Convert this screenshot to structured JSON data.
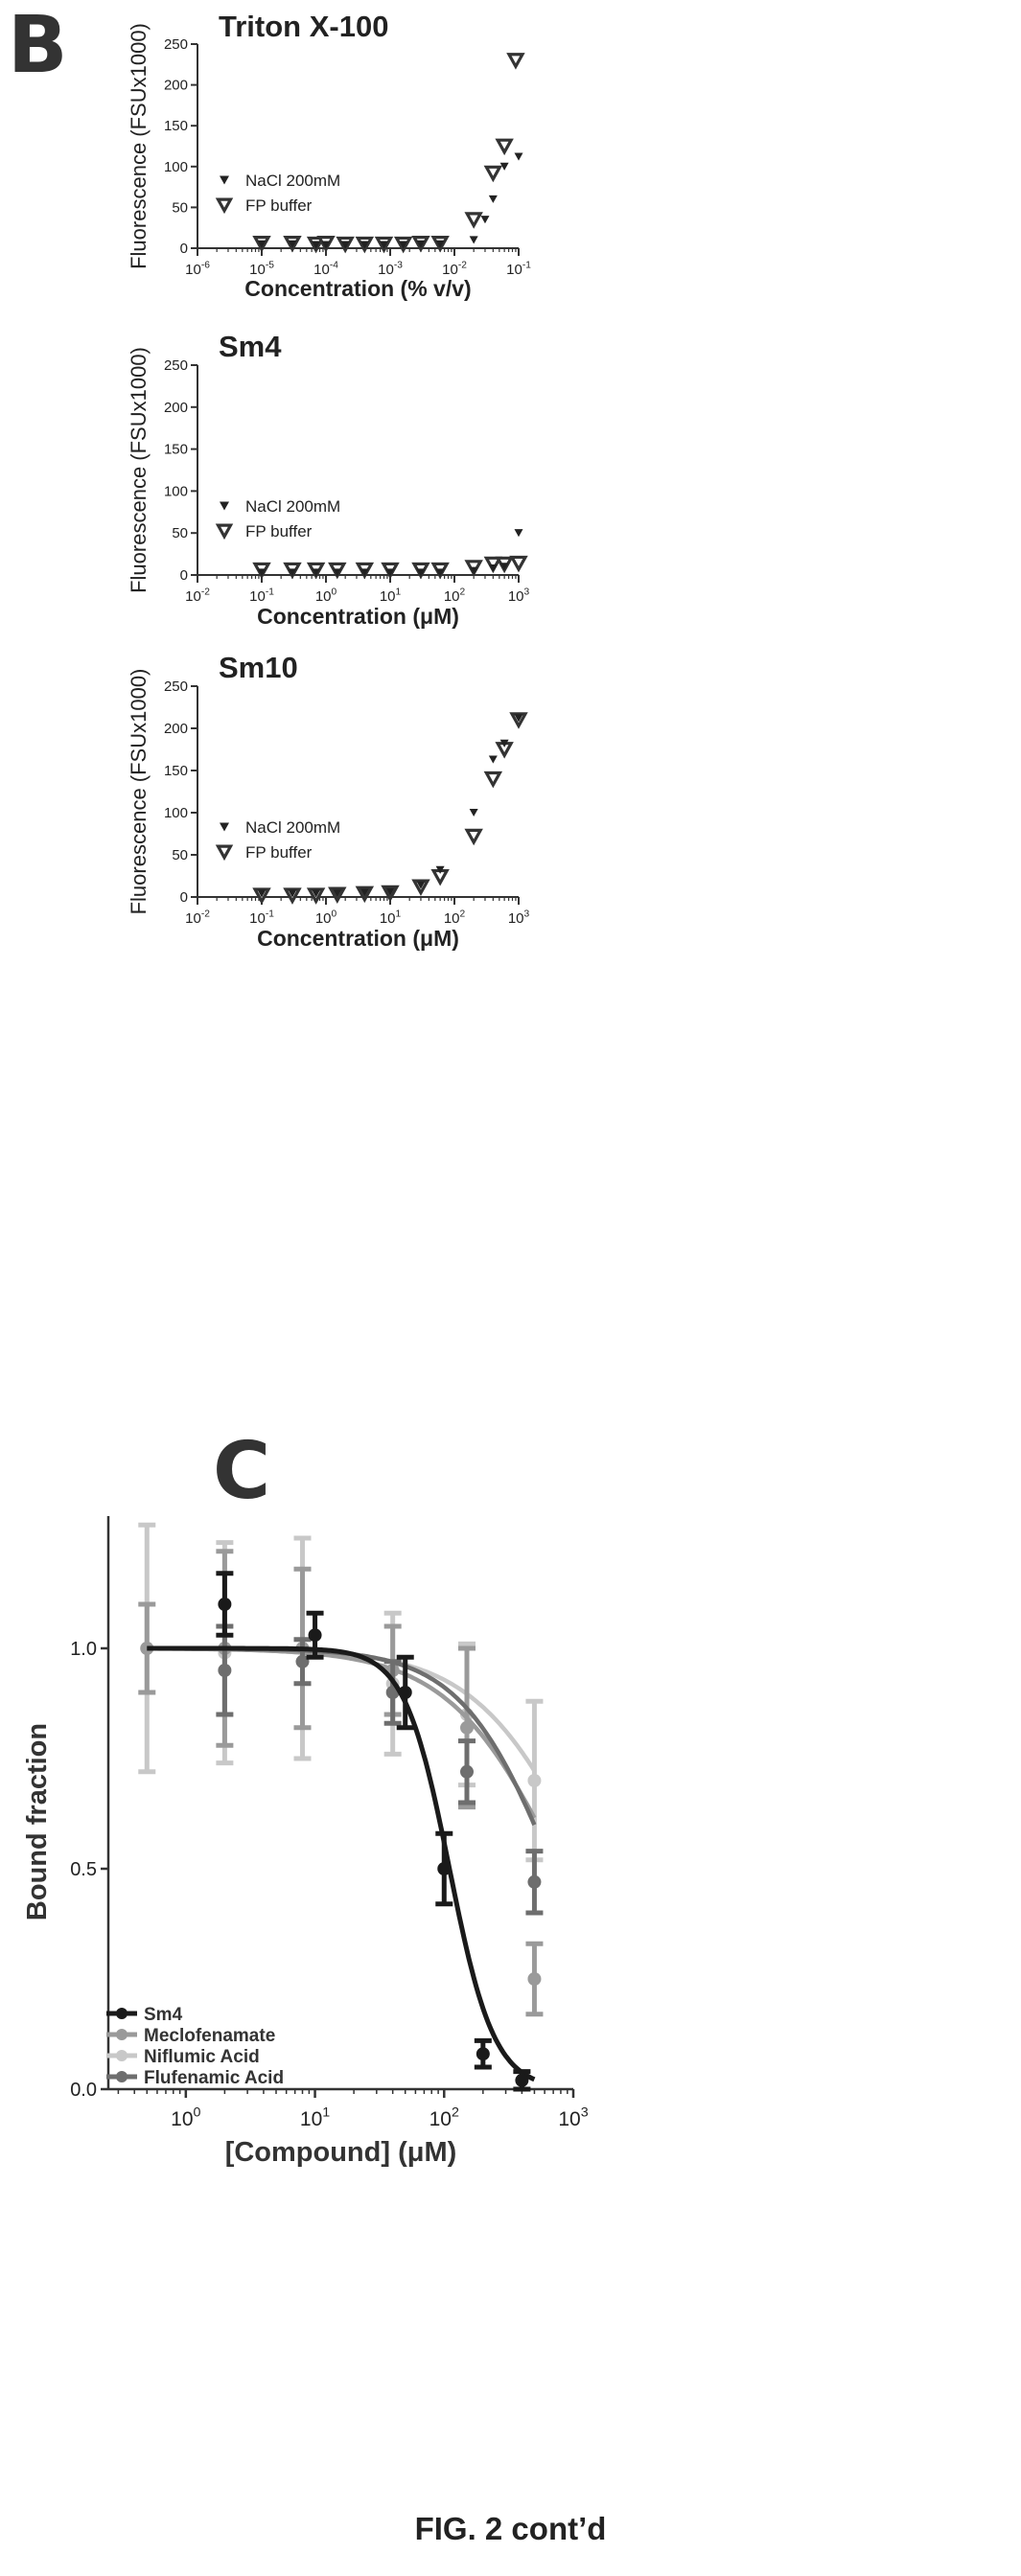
{
  "panel_b_label": "B",
  "panel_c_label": "C",
  "figure_caption": "FIG. 2 cont’d",
  "colors": {
    "axis": "#333333",
    "nacl": "#222222",
    "fp": "#333333",
    "sm4": "#1a1a1a",
    "meclofenamate": "#9a9a9a",
    "niflumic": "#c8c8c8",
    "flufenamic": "#6e6e6e"
  },
  "chart_data": [
    {
      "type": "scatter",
      "title": "Triton X-100",
      "xlabel": "Concentration (% v/v)",
      "ylabel": "Fluorescence (FSUx1000)",
      "xscale": "log",
      "xlim_exp": [
        -6,
        -1
      ],
      "ylim": [
        0,
        250
      ],
      "yticks": [
        0,
        50,
        100,
        150,
        200,
        250
      ],
      "legend_position": "center-left",
      "legend": [
        "NaCl 200mM",
        "FP buffer"
      ],
      "series": [
        {
          "name": "NaCl 200mM",
          "marker": "filled-triangle",
          "x": [
            1e-05,
            3e-05,
            7e-05,
            0.0001,
            0.0002,
            0.0004,
            0.0008,
            0.0016,
            0.003,
            0.006,
            0.02,
            0.03,
            0.04,
            0.06,
            0.1
          ],
          "y": [
            5,
            5,
            4,
            4,
            4,
            4,
            4,
            4,
            5,
            5,
            10,
            35,
            60,
            100,
            112
          ]
        },
        {
          "name": "FP buffer",
          "marker": "open-triangle",
          "x": [
            1e-05,
            3e-05,
            7e-05,
            0.0001,
            0.0002,
            0.0004,
            0.0008,
            0.0016,
            0.003,
            0.006,
            0.02,
            0.04,
            0.06,
            0.09
          ],
          "y": [
            6,
            6,
            5,
            6,
            5,
            5,
            5,
            5,
            6,
            6,
            35,
            92,
            125,
            230
          ]
        }
      ]
    },
    {
      "type": "scatter",
      "title": "Sm4",
      "xlabel": "Concentration (μM)",
      "ylabel": "Fluorescence (FSUx1000)",
      "xscale": "log",
      "xlim_exp": [
        -2,
        3
      ],
      "ylim": [
        0,
        250
      ],
      "yticks": [
        0,
        50,
        100,
        150,
        200,
        250
      ],
      "legend_position": "center-left",
      "legend": [
        "NaCl 200mM",
        "FP buffer"
      ],
      "series": [
        {
          "name": "NaCl 200mM",
          "marker": "filled-triangle",
          "x": [
            0.1,
            0.3,
            0.7,
            1.5,
            4,
            10,
            30,
            60,
            200,
            400,
            600,
            1000
          ],
          "y": [
            3,
            3,
            3,
            3,
            3,
            3,
            3,
            3,
            5,
            8,
            10,
            50
          ]
        },
        {
          "name": "FP buffer",
          "marker": "open-triangle",
          "x": [
            0.1,
            0.3,
            0.7,
            1.5,
            4,
            10,
            30,
            60,
            200,
            400,
            600,
            1000
          ],
          "y": [
            6,
            6,
            6,
            6,
            6,
            6,
            6,
            6,
            9,
            13,
            13,
            14
          ]
        }
      ]
    },
    {
      "type": "scatter",
      "title": "Sm10",
      "xlabel": "Concentration (μM)",
      "ylabel": "Fluorescence (FSUx1000)",
      "xscale": "log",
      "xlim_exp": [
        -2,
        3
      ],
      "ylim": [
        0,
        250
      ],
      "yticks": [
        0,
        50,
        100,
        150,
        200,
        250
      ],
      "legend_position": "center-left",
      "legend": [
        "NaCl 200mM",
        "FP buffer"
      ],
      "series": [
        {
          "name": "NaCl 200mM",
          "marker": "filled-triangle",
          "x": [
            0.1,
            0.3,
            0.7,
            1.5,
            4,
            10,
            30,
            60,
            200,
            400,
            600,
            1000
          ],
          "y": [
            4,
            4,
            4,
            4,
            5,
            6,
            14,
            32,
            100,
            163,
            182,
            212
          ]
        },
        {
          "name": "FP buffer",
          "marker": "open-triangle",
          "x": [
            0.1,
            0.3,
            0.7,
            1.5,
            4,
            10,
            30,
            60,
            200,
            400,
            600,
            1000
          ],
          "y": [
            2,
            2,
            2,
            3,
            4,
            5,
            12,
            24,
            72,
            140,
            175,
            210
          ]
        }
      ]
    },
    {
      "type": "line",
      "title": "",
      "xlabel": "[Compound] (μM)",
      "ylabel": "Bound fraction",
      "xscale": "log",
      "xlim_exp": [
        -0.6,
        3
      ],
      "xtick_exps": [
        0,
        1,
        2,
        3
      ],
      "ylim": [
        0,
        1.3
      ],
      "yticks": [
        0.0,
        0.5,
        1.0
      ],
      "legend_position": "bottom-left",
      "legend": [
        "Sm4",
        "Meclofenamate",
        "Niflumic Acid",
        "Flufenamic Acid"
      ],
      "series": [
        {
          "name": "Sm4",
          "ic50": 110,
          "hill": 2.5,
          "points": [
            {
              "x": 2,
              "y": 1.1,
              "err": 0.07
            },
            {
              "x": 10,
              "y": 1.03,
              "err": 0.05
            },
            {
              "x": 50,
              "y": 0.9,
              "err": 0.08
            },
            {
              "x": 100,
              "y": 0.5,
              "err": 0.08
            },
            {
              "x": 200,
              "y": 0.08,
              "err": 0.03
            },
            {
              "x": 400,
              "y": 0.02,
              "err": 0.02
            }
          ]
        },
        {
          "name": "Meclofenamate",
          "ic50": 800,
          "hill": 1.0,
          "points": [
            {
              "x": 0.5,
              "y": 1.0,
              "err": 0.1
            },
            {
              "x": 2,
              "y": 1.0,
              "err": 0.22
            },
            {
              "x": 8,
              "y": 1.0,
              "err": 0.18
            },
            {
              "x": 40,
              "y": 0.95,
              "err": 0.1
            },
            {
              "x": 150,
              "y": 0.82,
              "err": 0.18
            },
            {
              "x": 500,
              "y": 0.25,
              "err": 0.08
            }
          ]
        },
        {
          "name": "Niflumic Acid",
          "ic50": 1300,
          "hill": 1.0,
          "points": [
            {
              "x": 0.5,
              "y": 1.0,
              "err": 0.28
            },
            {
              "x": 2,
              "y": 0.99,
              "err": 0.25
            },
            {
              "x": 8,
              "y": 1.0,
              "err": 0.25
            },
            {
              "x": 40,
              "y": 0.92,
              "err": 0.16
            },
            {
              "x": 150,
              "y": 0.85,
              "err": 0.16
            },
            {
              "x": 500,
              "y": 0.7,
              "err": 0.18
            }
          ]
        },
        {
          "name": "Flufenamic Acid",
          "ic50": 700,
          "hill": 1.2,
          "points": [
            {
              "x": 2,
              "y": 0.95,
              "err": 0.1
            },
            {
              "x": 8,
              "y": 0.97,
              "err": 0.05
            },
            {
              "x": 40,
              "y": 0.9,
              "err": 0.07
            },
            {
              "x": 150,
              "y": 0.72,
              "err": 0.07
            },
            {
              "x": 500,
              "y": 0.47,
              "err": 0.07
            }
          ]
        }
      ]
    }
  ]
}
